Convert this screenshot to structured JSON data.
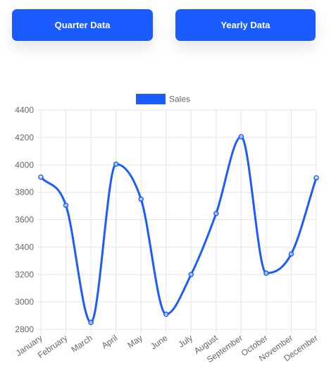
{
  "buttons": {
    "quarter_label": "Quarter Data",
    "yearly_label": "Yearly Data"
  },
  "colors": {
    "button_bg": "#1a5cff",
    "series_line": "#1a5cff",
    "grid": "#e5e5e5",
    "tick_text": "#666666"
  },
  "chart_data": {
    "type": "line",
    "categories": [
      "January",
      "February",
      "March",
      "April",
      "May",
      "June",
      "July",
      "August",
      "September",
      "October",
      "November",
      "December"
    ],
    "series": [
      {
        "name": "Sales",
        "values": [
          3910,
          3705,
          2850,
          4005,
          3750,
          2910,
          3200,
          3645,
          4205,
          3210,
          3350,
          3905
        ]
      }
    ],
    "ylim": [
      2800,
      4400
    ],
    "yticks": [
      2800,
      3000,
      3200,
      3400,
      3600,
      3800,
      4000,
      4200,
      4400
    ],
    "grid": true,
    "legend_position": "top-center",
    "curve": "smooth",
    "point_style": "hollow-circle"
  }
}
